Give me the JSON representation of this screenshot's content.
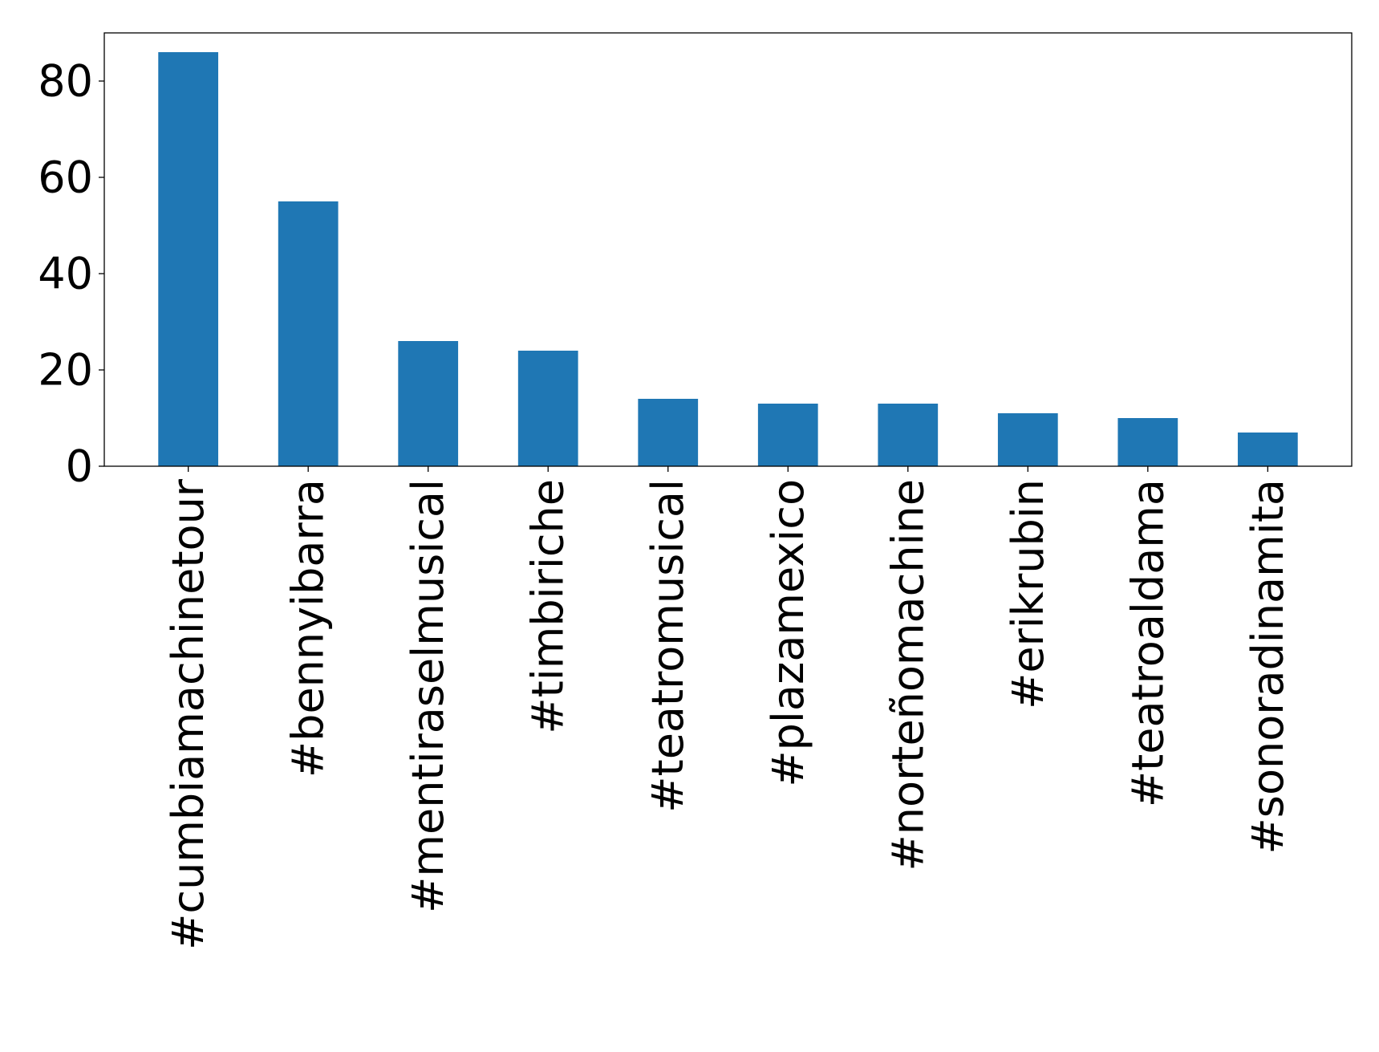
{
  "chart_data": {
    "type": "bar",
    "title": "",
    "xlabel": "",
    "ylabel": "",
    "categories": [
      "#cumbiamachinetour",
      "#bennyibarra",
      "#mentiraselmusical",
      "#timbiriche",
      "#teatromusical",
      "#plazamexico",
      "#norteñomachine",
      "#erikrubin",
      "#teatroaldama",
      "#sonoradinamita"
    ],
    "values": [
      86,
      55,
      26,
      24,
      14,
      13,
      13,
      11,
      10,
      7
    ],
    "ylim": [
      0,
      90
    ],
    "yticks": [
      0,
      20,
      40,
      60,
      80
    ],
    "bar_color": "#1f77b4",
    "grid": false,
    "legend": "none"
  }
}
